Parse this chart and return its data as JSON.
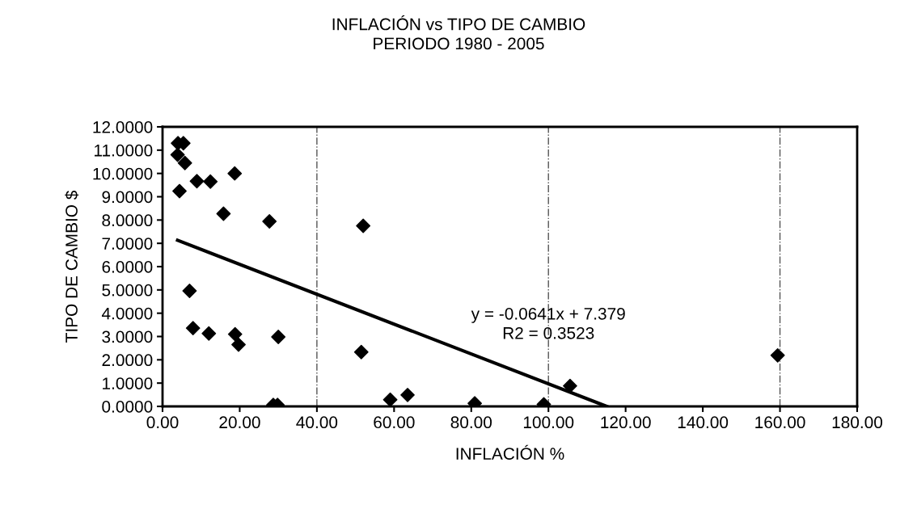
{
  "chart_data": {
    "type": "scatter",
    "title": "INFLACIÓN vs TIPO DE CAMBIO\nPERIODO 1980 - 2005",
    "xlabel": "INFLACIÓN %",
    "ylabel": "TIPO DE CAMBIO $",
    "series": [
      {
        "color": "#000000",
        "marker": "diamond",
        "x": [
          4.0,
          5.4,
          3.9,
          5.8,
          18.7,
          8.9,
          12.4,
          4.4,
          15.8,
          27.7,
          52.0,
          7.0,
          7.9,
          12.0,
          18.8,
          19.7,
          30.0,
          51.5,
          28.7,
          29.8,
          59.0,
          63.5,
          80.9,
          98.8,
          105.6,
          159.4
        ],
        "values": [
          11.3,
          11.3,
          10.8,
          10.45,
          10.0,
          9.67,
          9.65,
          9.24,
          8.27,
          7.94,
          7.75,
          4.96,
          3.36,
          3.13,
          3.1,
          2.65,
          2.98,
          2.33,
          0.06,
          0.06,
          0.29,
          0.49,
          0.13,
          0.09,
          0.88,
          2.19
        ]
      },
      {
        "type": "line",
        "color": "#000000",
        "marker": "none",
        "line_style": "solid",
        "x": [
          3.9,
          115.1
        ],
        "values": [
          7.13,
          0.0
        ]
      }
    ],
    "annotations": [
      {
        "text": "y = -0.0641x + 7.379\nR2 = 0.3523",
        "x": 100,
        "y": 3.5
      }
    ],
    "ref_lines": [
      {
        "axis": "x",
        "value": 40,
        "label": null,
        "color": "#555555",
        "line_style": "dashdot"
      },
      {
        "axis": "x",
        "value": 100,
        "label": null,
        "color": "#555555",
        "line_style": "dashdot"
      },
      {
        "axis": "x",
        "value": 160,
        "label": null,
        "color": "#555555",
        "line_style": "dashdot"
      }
    ],
    "xlim": [
      0,
      180
    ],
    "xticks": [
      {
        "value": 0,
        "label": "0.00"
      },
      {
        "value": 20,
        "label": "20.00"
      },
      {
        "value": 40,
        "label": "40.00"
      },
      {
        "value": 60,
        "label": "60.00"
      },
      {
        "value": 80,
        "label": "80.00"
      },
      {
        "value": 100,
        "label": "100.00"
      },
      {
        "value": 120,
        "label": "120.00"
      },
      {
        "value": 140,
        "label": "140.00"
      },
      {
        "value": 160,
        "label": "160.00"
      },
      {
        "value": 180,
        "label": "180.00"
      }
    ],
    "ylim": [
      0,
      12
    ],
    "yticks": [
      {
        "value": 0,
        "label": "0.0000"
      },
      {
        "value": 1,
        "label": "1.0000"
      },
      {
        "value": 2,
        "label": "2.0000"
      },
      {
        "value": 3,
        "label": "3.0000"
      },
      {
        "value": 4,
        "label": "4.0000"
      },
      {
        "value": 5,
        "label": "5.0000"
      },
      {
        "value": 6,
        "label": "6.0000"
      },
      {
        "value": 7,
        "label": "7.0000"
      },
      {
        "value": 8,
        "label": "8.0000"
      },
      {
        "value": 9,
        "label": "9.0000"
      },
      {
        "value": 10,
        "label": "10.0000"
      },
      {
        "value": 11,
        "label": "11.0000"
      },
      {
        "value": 12,
        "label": "12.0000"
      }
    ],
    "grid": false,
    "legend": false
  }
}
